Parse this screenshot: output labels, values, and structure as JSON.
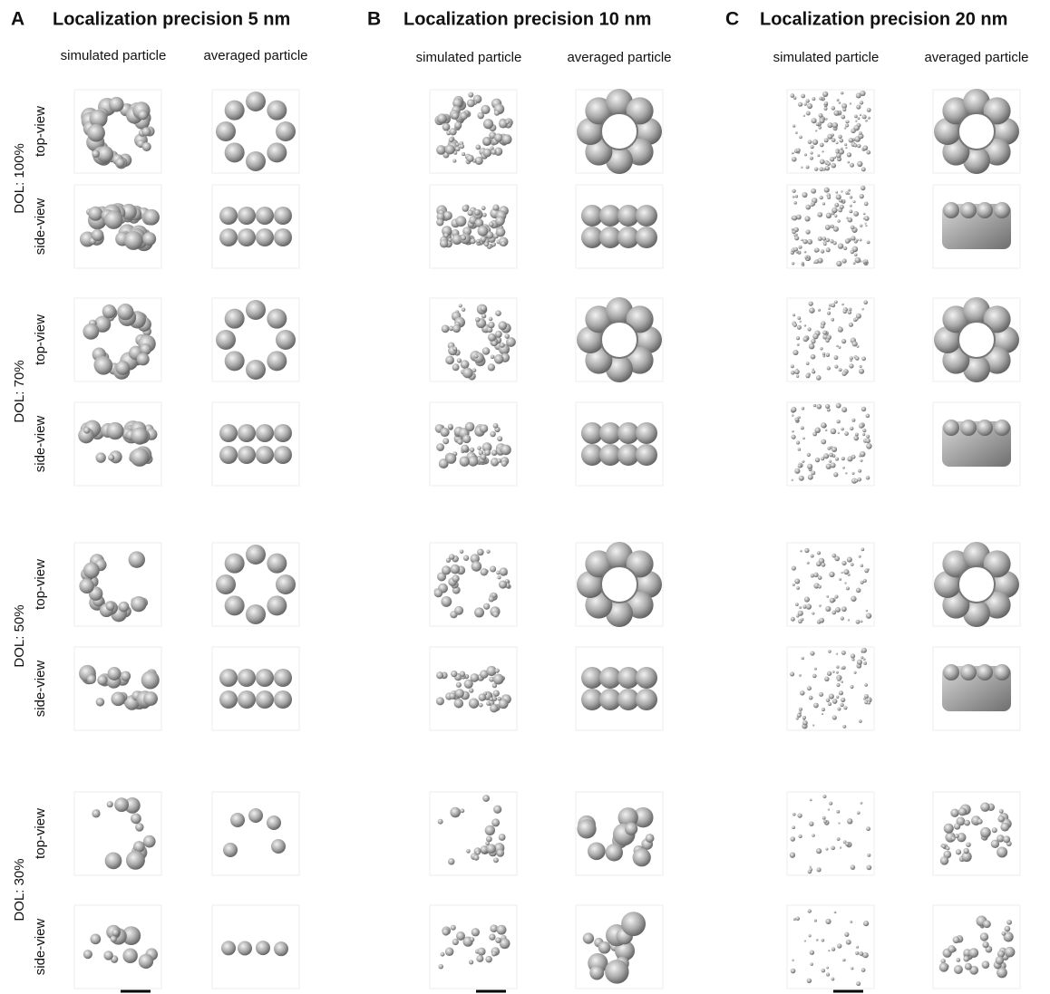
{
  "panels": [
    {
      "letter": "A",
      "title": "Localization precision 5 nm",
      "columns": [
        "simulated particle",
        "averaged particle"
      ]
    },
    {
      "letter": "B",
      "title": "Localization precision 10 nm",
      "columns": [
        "simulated particle",
        "averaged particle"
      ]
    },
    {
      "letter": "C",
      "title": "Localization precision 20 nm",
      "columns": [
        "simulated particle",
        "averaged particle"
      ]
    }
  ],
  "rows": [
    {
      "label": "DOL: 100%",
      "views": [
        "top-view",
        "side-view"
      ]
    },
    {
      "label": "DOL: 70%",
      "views": [
        "top-view",
        "side-view"
      ]
    },
    {
      "label": "DOL: 50%",
      "views": [
        "top-view",
        "side-view"
      ]
    },
    {
      "label": "DOL: 30%",
      "views": [
        "top-view",
        "side-view"
      ]
    }
  ]
}
